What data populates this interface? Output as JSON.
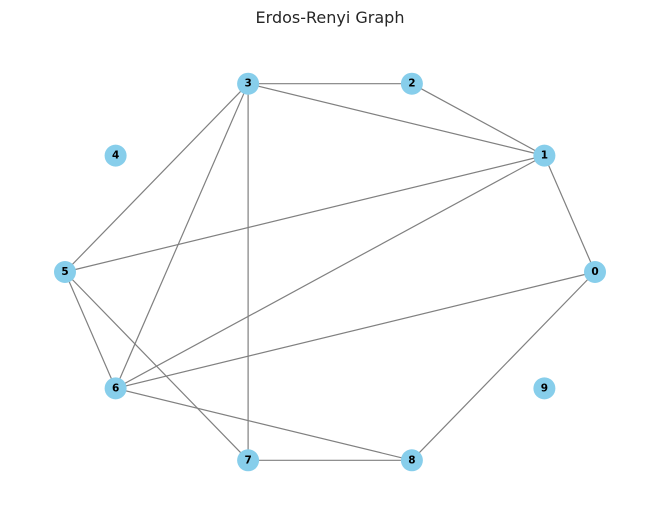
{
  "title": "Erdos-Renyi Graph",
  "colors": {
    "node_fill": "#87ceeb",
    "edge": "#808080",
    "label": "#000000"
  },
  "graph": {
    "layout": "circular",
    "nodes": [
      {
        "id": "0",
        "label": "0"
      },
      {
        "id": "1",
        "label": "1"
      },
      {
        "id": "2",
        "label": "2"
      },
      {
        "id": "3",
        "label": "3"
      },
      {
        "id": "4",
        "label": "4"
      },
      {
        "id": "5",
        "label": "5"
      },
      {
        "id": "6",
        "label": "6"
      },
      {
        "id": "7",
        "label": "7"
      },
      {
        "id": "8",
        "label": "8"
      },
      {
        "id": "9",
        "label": "9"
      }
    ],
    "edges": [
      [
        "0",
        "1"
      ],
      [
        "0",
        "6"
      ],
      [
        "0",
        "8"
      ],
      [
        "1",
        "2"
      ],
      [
        "1",
        "3"
      ],
      [
        "1",
        "5"
      ],
      [
        "1",
        "6"
      ],
      [
        "2",
        "3"
      ],
      [
        "3",
        "5"
      ],
      [
        "3",
        "6"
      ],
      [
        "3",
        "7"
      ],
      [
        "5",
        "6"
      ],
      [
        "5",
        "7"
      ],
      [
        "6",
        "8"
      ],
      [
        "7",
        "8"
      ]
    ]
  }
}
